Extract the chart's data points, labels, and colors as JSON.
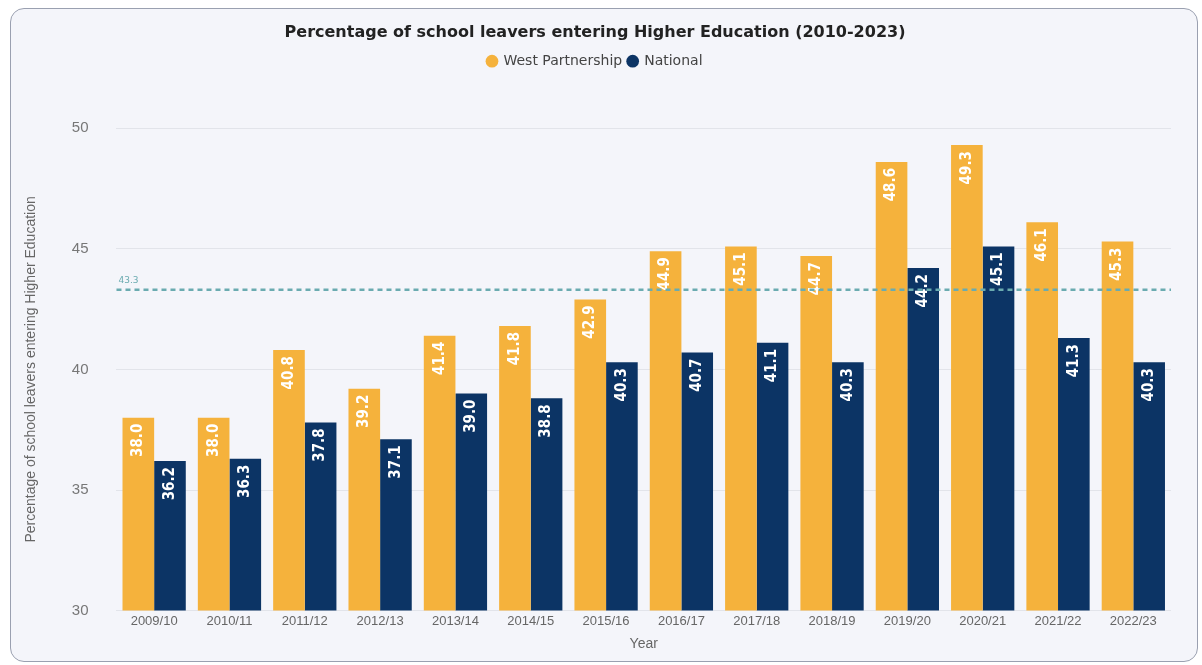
{
  "chart_data": {
    "type": "bar",
    "title": "Percentage of school leavers entering Higher Education (2010-2023)",
    "xlabel": "Year",
    "ylabel": "Percentage of school leavers entering Higher Education",
    "categories": [
      "2009/10",
      "2010/11",
      "2011/12",
      "2012/13",
      "2013/14",
      "2014/15",
      "2015/16",
      "2016/17",
      "2017/18",
      "2018/19",
      "2019/20",
      "2020/21",
      "2021/22",
      "2022/23"
    ],
    "series": [
      {
        "name": "West Partnership",
        "color": "#f5b23c",
        "values": [
          38.0,
          38.0,
          40.8,
          39.2,
          41.4,
          41.8,
          42.9,
          44.9,
          45.1,
          44.7,
          48.6,
          49.3,
          46.1,
          45.3
        ],
        "value_labels": [
          "38.0",
          "38.0",
          "40.8",
          "39.2",
          "41.4",
          "41.8",
          "42.9",
          "44.9",
          "45.1",
          "44.7",
          "48.6",
          "49.3",
          "46.1",
          "45.3"
        ]
      },
      {
        "name": "National",
        "color": "#0c3465",
        "values": [
          36.2,
          36.3,
          37.8,
          37.1,
          39.0,
          38.8,
          40.3,
          40.7,
          41.1,
          40.3,
          44.2,
          45.1,
          41.3,
          40.3
        ],
        "value_labels": [
          "36.2",
          "36.3",
          "37.8",
          "37.1",
          "39.0",
          "38.8",
          "40.3",
          "40.7",
          "41.1",
          "40.3",
          "44.2",
          "45.1",
          "41.3",
          "40.3"
        ]
      }
    ],
    "ylim": [
      30,
      50
    ],
    "yticks": [
      30,
      35,
      40,
      45,
      50
    ],
    "grid": "y",
    "legend": "top",
    "ref_lines": [
      {
        "axis": "y",
        "value": 43.3,
        "label": "43.3",
        "color": "#6aabb0",
        "line_style": "dashed"
      }
    ]
  }
}
